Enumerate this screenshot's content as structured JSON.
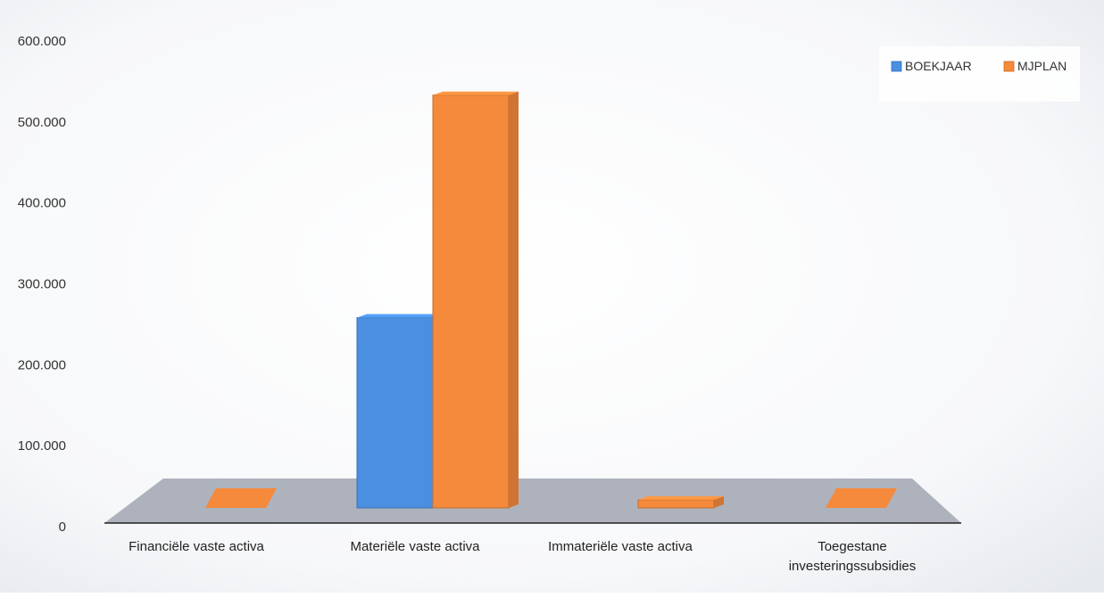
{
  "chart_data": {
    "type": "bar",
    "title": "",
    "xlabel": "",
    "ylabel": "",
    "ylim": [
      0,
      600000
    ],
    "yticks": [
      0,
      100000,
      200000,
      300000,
      400000,
      500000,
      600000
    ],
    "ytick_labels": [
      "0",
      "100.000",
      "200.000",
      "300.000",
      "400.000",
      "500.000",
      "600.000"
    ],
    "categories": [
      "Financiële vaste activa",
      "Materiële vaste activa",
      "Immateriële vaste activa",
      "Toegestane investeringssubsidies"
    ],
    "category_lines": [
      [
        "Financiële vaste activa"
      ],
      [
        "Materiële vaste activa"
      ],
      [
        "Immateriële vaste activa"
      ],
      [
        "Toegestane",
        "investeringssubsidies"
      ]
    ],
    "series": [
      {
        "name": "BOEKJAAR",
        "color": "#4a8fe0",
        "values": [
          0,
          235000,
          0,
          0
        ]
      },
      {
        "name": "MJPLAN",
        "color": "#f5893c",
        "values": [
          0,
          510000,
          10000,
          0
        ]
      }
    ],
    "legend_position": "top-right",
    "grid": false,
    "style": "3d-bar"
  }
}
